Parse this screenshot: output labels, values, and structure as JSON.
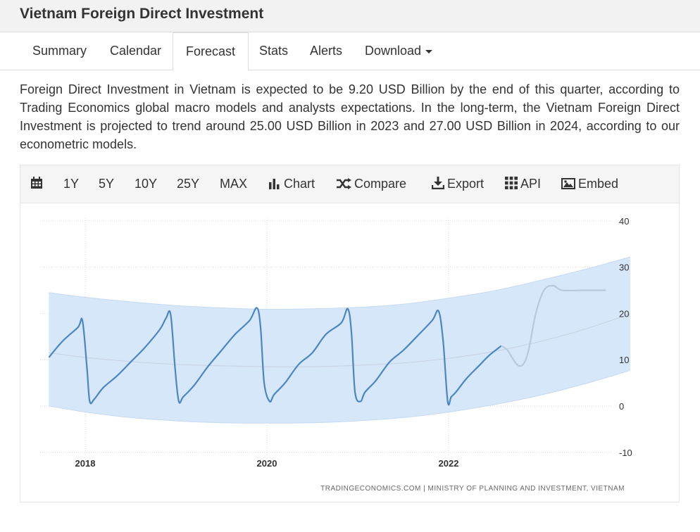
{
  "page": {
    "title": "Vietnam Foreign Direct Investment",
    "tabs": [
      {
        "label": "Summary"
      },
      {
        "label": "Calendar"
      },
      {
        "label": "Forecast",
        "active": true
      },
      {
        "label": "Stats"
      },
      {
        "label": "Alerts"
      },
      {
        "label": "Download"
      }
    ],
    "description": "Foreign Direct Investment in Vietnam is expected to be 9.20 USD Billion by the end of this quarter, according to Trading Economics global macro models and analysts expectations. In the long-term, the Vietnam Foreign Direct Investment is projected to trend around 25.00 USD Billion in 2023 and 27.00 USD Billion in 2024, according to our econometric models."
  },
  "toolbar": {
    "calendar_icon": "calendar-icon",
    "range_buttons": [
      "1Y",
      "5Y",
      "10Y",
      "25Y",
      "MAX"
    ],
    "chart_label": "Chart",
    "compare_label": "Compare",
    "export_label": "Export",
    "api_label": "API",
    "embed_label": "Embed"
  },
  "chart_data": {
    "type": "line",
    "title": "",
    "x_tick_labels": [
      "2018",
      "2020",
      "2022"
    ],
    "y_ticks": [
      40,
      30,
      20,
      10,
      0,
      -10
    ],
    "ylim": [
      -10,
      40
    ],
    "y_axis_side": "right",
    "grid": true,
    "source": "TRADINGECONOMICS.COM  |  MINISTRY OF PLANNING AND INVESTMENT, VIETNAM",
    "colors": {
      "actual": "#4a86c5",
      "forecast": "#b8c9dc",
      "band": "#d3e4fa",
      "trend": "#c8d4e4"
    },
    "actual": {
      "x": [
        2017.6,
        2017.75,
        2017.92,
        2017.97,
        2018.02,
        2018.05,
        2018.1,
        2018.2,
        2018.35,
        2018.5,
        2018.65,
        2018.82,
        2018.89,
        2018.94,
        2018.99,
        2019.03,
        2019.08,
        2019.2,
        2019.35,
        2019.5,
        2019.65,
        2019.81,
        2019.89,
        2019.93,
        2019.97,
        2020.03,
        2020.08,
        2020.2,
        2020.35,
        2020.5,
        2020.65,
        2020.82,
        2020.89,
        2020.93,
        2020.97,
        2021.03,
        2021.08,
        2021.2,
        2021.35,
        2021.5,
        2021.65,
        2021.82,
        2021.89,
        2021.94,
        2021.99,
        2022.03,
        2022.08,
        2022.2,
        2022.35,
        2022.45,
        2022.58
      ],
      "y": [
        10.5,
        14,
        17,
        18.4,
        8,
        1,
        1.5,
        4,
        6.5,
        9.5,
        12.5,
        16.5,
        19,
        19.8,
        8,
        1,
        2,
        4.5,
        8.5,
        12,
        15.5,
        18.5,
        21.2,
        17,
        5,
        1,
        2.5,
        5,
        9,
        11.5,
        15.5,
        18,
        21,
        16,
        3,
        1,
        3,
        5.5,
        9.5,
        12,
        15,
        18.5,
        20.5,
        14,
        1,
        2,
        3,
        6,
        9,
        11,
        13
      ]
    },
    "forecast": {
      "x": [
        2022.58,
        2022.65,
        2022.75,
        2022.82,
        2022.88,
        2022.96,
        2023.05,
        2023.15,
        2023.25,
        2023.5,
        2023.73
      ],
      "y": [
        13,
        12,
        9,
        9,
        12,
        20,
        25,
        26,
        25,
        25,
        25
      ]
    },
    "trend": {
      "x": [
        2017.6,
        2018.0,
        2018.5,
        2019.0,
        2019.5,
        2020.0,
        2020.5,
        2021.0,
        2021.5,
        2022.0,
        2022.5,
        2023.0,
        2023.5,
        2024.0
      ],
      "y": [
        11.5,
        10.5,
        9.6,
        9.0,
        8.7,
        8.5,
        8.5,
        8.8,
        9.3,
        10.3,
        11.8,
        13.9,
        16.6,
        19.9
      ]
    },
    "band_upper": {
      "x": [
        2017.6,
        2018.0,
        2018.5,
        2019.0,
        2019.5,
        2020.0,
        2020.5,
        2021.0,
        2021.5,
        2022.0,
        2022.5,
        2023.0,
        2023.5,
        2024.0
      ],
      "y": [
        24.5,
        23.5,
        22.5,
        21.7,
        21.2,
        20.9,
        21.0,
        21.3,
        22.0,
        23.3,
        24.9,
        27.1,
        29.5,
        32.2
      ]
    },
    "band_lower": {
      "x": [
        2017.6,
        2018.0,
        2018.5,
        2019.0,
        2019.5,
        2020.0,
        2020.5,
        2021.0,
        2021.5,
        2022.0,
        2022.5,
        2023.0,
        2023.5,
        2024.0
      ],
      "y": [
        0,
        -1.3,
        -2.5,
        -3.2,
        -3.6,
        -3.7,
        -3.6,
        -3.2,
        -2.5,
        -1.3,
        0.3,
        2.3,
        4.8,
        7.7
      ]
    }
  }
}
